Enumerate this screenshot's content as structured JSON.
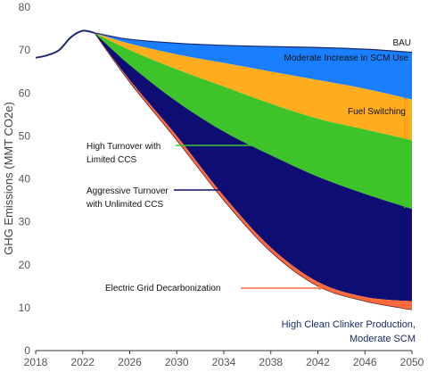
{
  "chart_data": {
    "type": "area",
    "title": "",
    "xlabel": "",
    "ylabel": "GHG Emissions (MMT CO2e)",
    "xlim": [
      2018,
      2050
    ],
    "ylim": [
      0,
      80
    ],
    "x_ticks": [
      "2018",
      "2022",
      "2026",
      "2030",
      "2034",
      "2038",
      "2042",
      "2046",
      "2050"
    ],
    "y_ticks": [
      "0",
      "10",
      "20",
      "30",
      "40",
      "50",
      "60",
      "70",
      "80"
    ],
    "grid": false,
    "history": {
      "x": [
        2018,
        2019,
        2020,
        2021,
        2022,
        2023
      ],
      "y": [
        68.2,
        68.8,
        70.0,
        73.0,
        74.5,
        74.0
      ]
    },
    "boundaries": {
      "x": [
        2023,
        2026,
        2030,
        2034,
        2038,
        2042,
        2046,
        2050
      ],
      "bau": [
        74.0,
        72.5,
        71.6,
        71.1,
        70.8,
        70.6,
        70.2,
        69.5
      ],
      "scm": [
        74.0,
        71.5,
        69.0,
        67.0,
        65.0,
        63.0,
        61.0,
        58.5
      ],
      "fuel": [
        74.0,
        70.0,
        65.5,
        61.5,
        57.5,
        54.0,
        51.5,
        49.0
      ],
      "ht_limited_ccs": [
        74.0,
        66.5,
        58.0,
        51.0,
        45.5,
        40.5,
        36.5,
        33.0
      ],
      "agg_unlimited_ccs": [
        74.0,
        63.0,
        50.0,
        36.0,
        24.0,
        16.0,
        12.5,
        11.5
      ],
      "grid_decarb": [
        74.0,
        62.5,
        49.0,
        35.0,
        23.0,
        15.0,
        11.5,
        9.5
      ]
    },
    "series": [
      {
        "name": "Moderate Increase in SCM Use",
        "color": "#1a7fff"
      },
      {
        "name": "Fuel Switching",
        "color": "#ffad1f"
      },
      {
        "name": "High Turnover with Limited CCS",
        "color": "#3ec42a"
      },
      {
        "name": "Aggressive Turnover with Unlimited CCS",
        "color": "#0d0d73"
      },
      {
        "name": "Electric Grid Decarbonization",
        "color": "#ff6a3d"
      }
    ],
    "annotations": {
      "bau": "BAU",
      "scm": "Moderate Increase in SCM Use",
      "fuel": "Fuel Switching",
      "ht_line1": "High Turnover with",
      "ht_line2": "Limited CCS",
      "agg_line1": "Aggressive Turnover",
      "agg_line2": "with Unlimited CCS",
      "grid": "Electric Grid Decarbonization",
      "end_line1": "High Clean Clinker Production,",
      "end_line2": "Moderate SCM"
    },
    "colors": {
      "history_line": "#1a2a6c",
      "axis": "#333333",
      "arrow_scm": "#1a7fff",
      "arrow_fuel": "#ff9a00",
      "arrow_ht": "#3ec42a",
      "arrow_agg": "#0d0d73",
      "arrow_grid": "#ff6a3d"
    }
  }
}
